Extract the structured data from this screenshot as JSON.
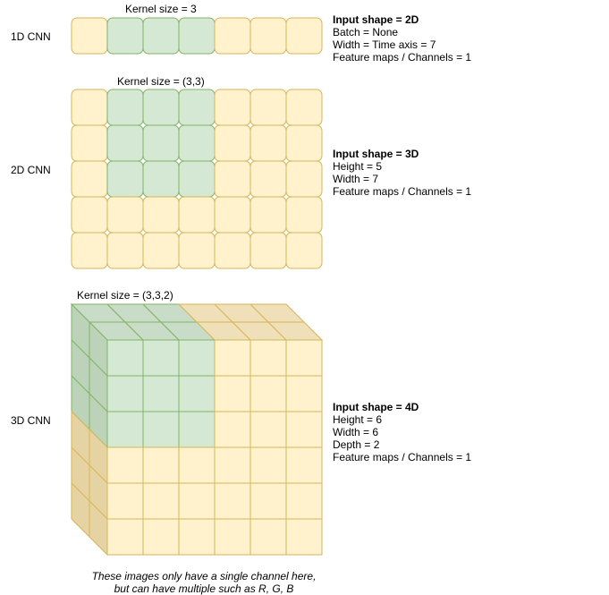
{
  "rows": [
    {
      "label": "1D CNN",
      "kernel": "Kernel size = 3",
      "desc_title": "Input shape = 2D",
      "desc_lines": [
        "Batch = None",
        "Width = Time axis = 7",
        "Feature maps / Channels = 1"
      ]
    },
    {
      "label": "2D CNN",
      "kernel": "Kernel size = (3,3)",
      "desc_title": "Input shape = 3D",
      "desc_lines": [
        "Height = 5",
        "Width = 7",
        "Feature maps / Channels = 1"
      ]
    },
    {
      "label": "3D CNN",
      "kernel": "Kernel size = (3,3,2)",
      "desc_title": "Input shape = 4D",
      "desc_lines": [
        "Height = 6",
        "Width = 6",
        "Depth = 2",
        "Feature maps / Channels = 1"
      ]
    }
  ],
  "note_line1": "These images only have a single channel here,",
  "note_line2": "but can have multiple such as R, G, B",
  "colors": {
    "input_cell": "#fff2cc",
    "input_border": "#d6b656",
    "kernel_cell": "#d5e8d4",
    "kernel_border": "#82b366"
  }
}
